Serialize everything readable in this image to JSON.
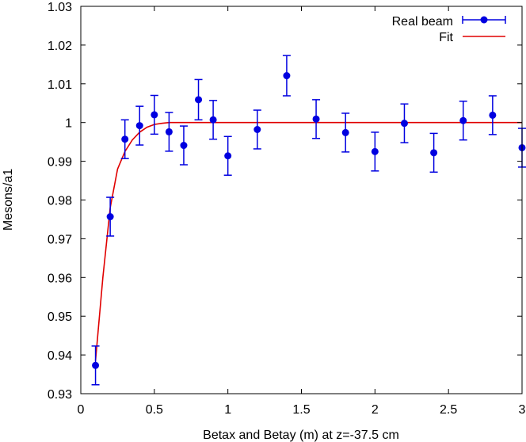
{
  "chart_data": {
    "type": "scatter",
    "title": "",
    "xlabel": "Betax and Betay (m) at z=-37.5 cm",
    "ylabel": "Mesons/a1",
    "xlim": [
      0,
      3
    ],
    "ylim": [
      0.93,
      1.03
    ],
    "grid": false,
    "legend_position": "top-right",
    "xticks": [
      0,
      0.5,
      1,
      1.5,
      2,
      2.5,
      3
    ],
    "xtick_labels": [
      "0",
      "0.5",
      "1",
      "1.5",
      "2",
      "2.5",
      "3"
    ],
    "yticks": [
      0.93,
      0.94,
      0.95,
      0.96,
      0.97,
      0.98,
      0.99,
      1.0,
      1.01,
      1.02,
      1.03
    ],
    "ytick_labels": [
      "0.93",
      "0.94",
      "0.95",
      "0.96",
      "0.97",
      "0.98",
      "0.99",
      "1",
      "1.01",
      "1.02",
      "1.03"
    ],
    "series": [
      {
        "name": "Real beam",
        "kind": "points-with-errorbars",
        "color": "#0000e0",
        "x": [
          0.1,
          0.2,
          0.3,
          0.4,
          0.5,
          0.6,
          0.7,
          0.8,
          0.9,
          1.0,
          1.2,
          1.4,
          1.6,
          1.8,
          2.0,
          2.2,
          2.4,
          2.6,
          2.8,
          3.0
        ],
        "y": [
          0.9373,
          0.9757,
          0.9957,
          0.9992,
          1.002,
          0.9976,
          0.9941,
          1.0059,
          1.0007,
          0.9914,
          0.9982,
          1.0121,
          1.0009,
          0.9974,
          0.9925,
          0.9998,
          0.9922,
          1.0005,
          1.0019,
          0.9935
        ],
        "err": [
          0.005,
          0.005,
          0.005,
          0.005,
          0.005,
          0.005,
          0.005,
          0.0052,
          0.005,
          0.005,
          0.005,
          0.0052,
          0.005,
          0.005,
          0.005,
          0.005,
          0.005,
          0.005,
          0.005,
          0.005
        ]
      },
      {
        "name": "Fit",
        "kind": "line",
        "color": "#e00000",
        "x": [
          0.1,
          0.15,
          0.2,
          0.25,
          0.3,
          0.35,
          0.4,
          0.45,
          0.5,
          0.55,
          0.6,
          0.7,
          0.8,
          1.0,
          1.5,
          2.0,
          2.5,
          3.0
        ],
        "y": [
          0.9385,
          0.96,
          0.978,
          0.988,
          0.9925,
          0.9955,
          0.9975,
          0.9988,
          0.9995,
          0.9998,
          1.0,
          1.0,
          1.0,
          1.0,
          1.0,
          1.0,
          1.0,
          1.0
        ]
      }
    ]
  }
}
